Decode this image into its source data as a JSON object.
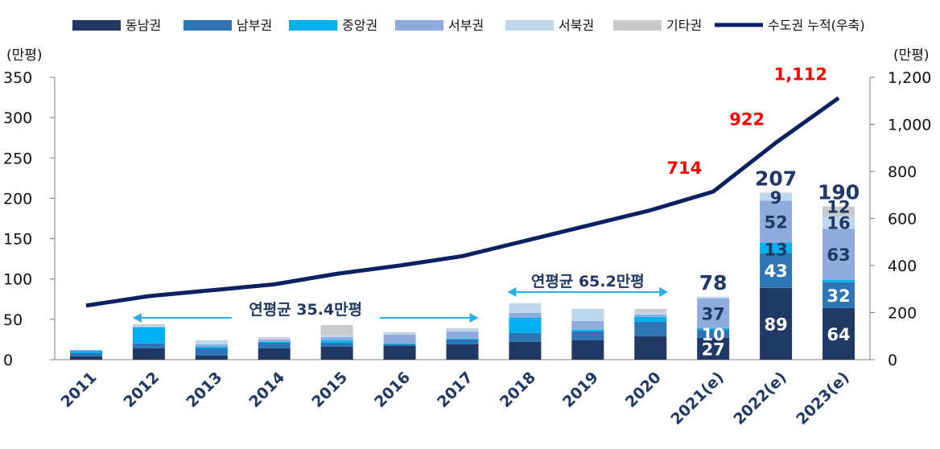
{
  "chart_data": {
    "type": "bar",
    "stacked": true,
    "categories": [
      "2011",
      "2012",
      "2013",
      "2014",
      "2015",
      "2016",
      "2017",
      "2018",
      "2019",
      "2020",
      "2021(e)",
      "2022(e)",
      "2023(e)"
    ],
    "series": [
      {
        "name": "동남권",
        "color": "#1f3864",
        "values": [
          4,
          14,
          5,
          14,
          16,
          17,
          19,
          22,
          24,
          29,
          27,
          89,
          64
        ]
      },
      {
        "name": "남부권",
        "color": "#2e75b6",
        "values": [
          4,
          6,
          9,
          7,
          5,
          2,
          6,
          11,
          11,
          18,
          10,
          43,
          32
        ]
      },
      {
        "name": "중앙권",
        "color": "#00b0f0",
        "values": [
          3,
          20,
          2,
          1,
          3,
          1,
          1,
          19,
          2,
          6,
          2,
          13,
          3
        ]
      },
      {
        "name": "서부권",
        "color": "#8faadc",
        "values": [
          1,
          1,
          3,
          3,
          4,
          11,
          9,
          6,
          11,
          3,
          37,
          52,
          63
        ]
      },
      {
        "name": "서북권",
        "color": "#bdd7ee",
        "values": [
          0,
          1,
          5,
          2,
          3,
          2,
          3,
          11,
          15,
          3,
          2,
          9,
          16
        ]
      },
      {
        "name": "기타권",
        "color": "#c9c9c9",
        "values": [
          0,
          2,
          0,
          1,
          12,
          1,
          1,
          1,
          0,
          4,
          0,
          1,
          12
        ]
      }
    ],
    "line": {
      "name": "수도권 누적(우축)",
      "color": "#0b2161",
      "values": [
        230,
        270,
        295,
        320,
        365,
        400,
        440,
        505,
        570,
        635,
        714,
        922,
        1112
      ]
    },
    "segment_labels": [
      {
        "category": "2021(e)",
        "series": "동남권",
        "text": "27"
      },
      {
        "category": "2021(e)",
        "series": "남부권",
        "text": "10"
      },
      {
        "category": "2021(e)",
        "series": "서부권",
        "text": "37"
      },
      {
        "category": "2022(e)",
        "series": "동남권",
        "text": "89"
      },
      {
        "category": "2022(e)",
        "series": "남부권",
        "text": "43"
      },
      {
        "category": "2022(e)",
        "series": "중앙권",
        "text": "13"
      },
      {
        "category": "2022(e)",
        "series": "서부권",
        "text": "52"
      },
      {
        "category": "2022(e)",
        "series": "서북권",
        "text": "9"
      },
      {
        "category": "2023(e)",
        "series": "동남권",
        "text": "64"
      },
      {
        "category": "2023(e)",
        "series": "남부권",
        "text": "32"
      },
      {
        "category": "2023(e)",
        "series": "서부권",
        "text": "63"
      },
      {
        "category": "2023(e)",
        "series": "서북권",
        "text": "16"
      },
      {
        "category": "2023(e)",
        "series": "기타권",
        "text": "12"
      }
    ],
    "total_labels": [
      {
        "category": "2021(e)",
        "text": "78"
      },
      {
        "category": "2022(e)",
        "text": "207"
      },
      {
        "category": "2023(e)",
        "text": "190"
      }
    ],
    "line_labels": [
      {
        "category": "2021(e)",
        "text": "714"
      },
      {
        "category": "2022(e)",
        "text": "922"
      },
      {
        "category": "2023(e)",
        "text": "1,112"
      }
    ],
    "annotations": [
      {
        "text": "연평균  35.4만평",
        "from": "2012",
        "to": "2017"
      },
      {
        "text": "연평균  65.2만평",
        "from": "2018",
        "to": "2020"
      }
    ],
    "ylabel_left": "(만평)",
    "ylabel_right": "(만평)",
    "ylim_left": [
      0,
      350
    ],
    "yticks_left": [
      0,
      50,
      100,
      150,
      200,
      250,
      300,
      350
    ],
    "ylim_right": [
      0,
      1200
    ],
    "yticks_right": [
      0,
      200,
      400,
      600,
      800,
      1000,
      1200
    ],
    "yticks_right_labels": [
      "0",
      "200",
      "400",
      "600",
      "800",
      "1,000",
      "1,200"
    ],
    "legend_position": "top",
    "grid": false
  }
}
